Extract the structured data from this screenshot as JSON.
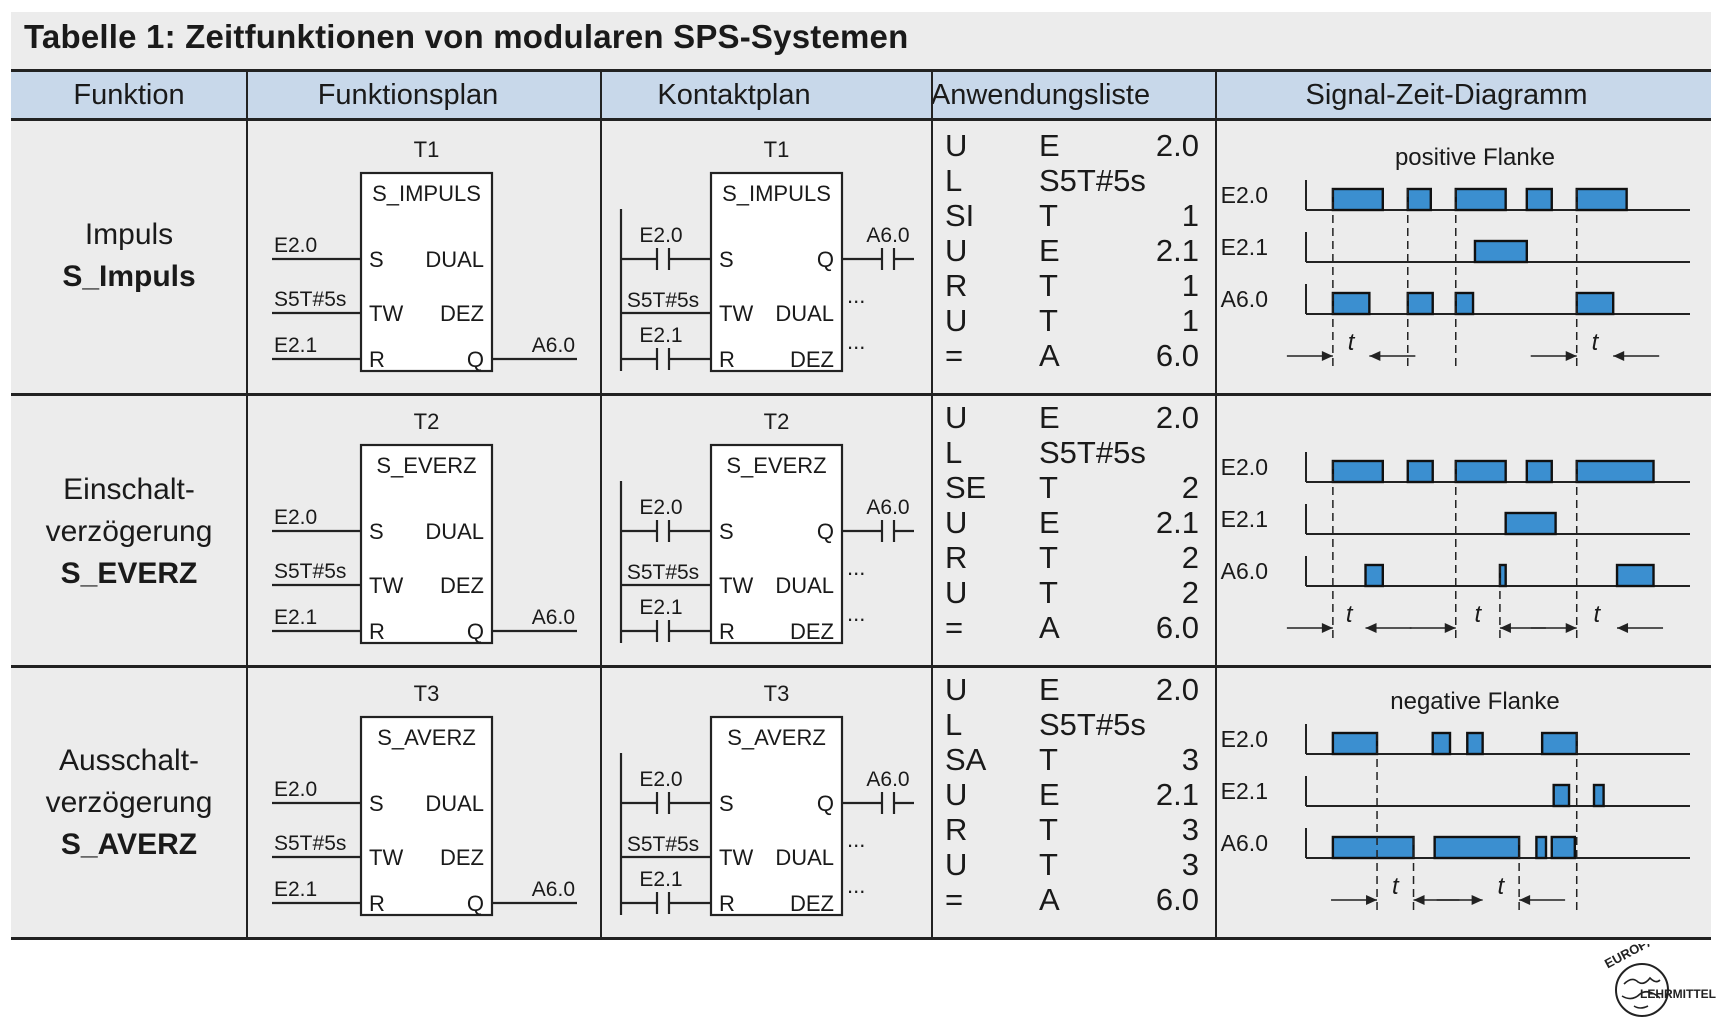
{
  "title": "Tabelle 1:  Zeitfunktionen von modularen SPS-Systemen",
  "headers": [
    "Funktion",
    "Funktionsplan",
    "Kontaktplan",
    "Anwendungsliste",
    "Signal-Zeit-Diagramm"
  ],
  "rows": [
    {
      "name_lines": [
        "Impuls"
      ],
      "name_bold": "S_Impuls",
      "timer": "T1",
      "block": "S_IMPULS",
      "fbd_pins": {
        "s": "S",
        "tw": "TW",
        "r": "R",
        "dual": "DUAL",
        "dez": "DEZ",
        "q": "Q"
      },
      "fbd_signals": {
        "in1": "E2.0",
        "in2": "S5T#5s",
        "in3": "E2.1",
        "out": "A6.0"
      },
      "lad": {
        "in1": "E2.0",
        "in2": "S5T#5s",
        "in3": "E2.1",
        "out": "A6.0",
        "dots": "..."
      },
      "awl": [
        [
          "U",
          "E",
          "2.0"
        ],
        [
          "L",
          "S5T#5s",
          ""
        ],
        [
          "SI",
          "T",
          "1"
        ],
        [
          "U",
          "E",
          "2.1"
        ],
        [
          "R",
          "T",
          "1"
        ],
        [
          "U",
          "T",
          "1"
        ],
        [
          "=",
          "A",
          "6.0"
        ]
      ],
      "diagram": {
        "annotation": "positive Flanke",
        "signals": [
          {
            "label": "E2.0",
            "pulses": [
              [
                0.07,
                0.2
              ],
              [
                0.265,
                0.325
              ],
              [
                0.39,
                0.52
              ],
              [
                0.575,
                0.64
              ],
              [
                0.705,
                0.835
              ]
            ]
          },
          {
            "label": "E2.1",
            "pulses": [
              [
                0.44,
                0.575
              ]
            ]
          },
          {
            "label": "A6.0",
            "pulses": [
              [
                0.07,
                0.165
              ],
              [
                0.265,
                0.33
              ],
              [
                0.39,
                0.435
              ],
              [
                0.705,
                0.8
              ]
            ]
          }
        ],
        "t_label": "t"
      }
    },
    {
      "name_lines": [
        "Einschalt-",
        "verzögerung"
      ],
      "name_bold": "S_EVERZ",
      "timer": "T2",
      "block": "S_EVERZ",
      "fbd_pins": {
        "s": "S",
        "tw": "TW",
        "r": "R",
        "dual": "DUAL",
        "dez": "DEZ",
        "q": "Q"
      },
      "fbd_signals": {
        "in1": "E2.0",
        "in2": "S5T#5s",
        "in3": "E2.1",
        "out": "A6.0"
      },
      "lad": {
        "in1": "E2.0",
        "in2": "S5T#5s",
        "in3": "E2.1",
        "out": "A6.0",
        "dots": "..."
      },
      "awl": [
        [
          "U",
          "E",
          "2.0"
        ],
        [
          "L",
          "S5T#5s",
          ""
        ],
        [
          "SE",
          "T",
          "2"
        ],
        [
          "U",
          "E",
          "2.1"
        ],
        [
          "R",
          "T",
          "2"
        ],
        [
          "U",
          "T",
          "2"
        ],
        [
          "=",
          "A",
          "6.0"
        ]
      ],
      "diagram": {
        "annotation": "",
        "signals": [
          {
            "label": "E2.0",
            "pulses": [
              [
                0.07,
                0.2
              ],
              [
                0.265,
                0.33
              ],
              [
                0.39,
                0.52
              ],
              [
                0.575,
                0.64
              ],
              [
                0.705,
                0.905
              ]
            ]
          },
          {
            "label": "E2.1",
            "pulses": [
              [
                0.52,
                0.65
              ]
            ]
          },
          {
            "label": "A6.0",
            "pulses": [
              [
                0.155,
                0.2
              ],
              [
                0.505,
                0.52
              ],
              [
                0.81,
                0.905
              ]
            ]
          }
        ],
        "t_label": "t"
      }
    },
    {
      "name_lines": [
        "Ausschalt-",
        "verzögerung"
      ],
      "name_bold": "S_AVERZ",
      "timer": "T3",
      "block": "S_AVERZ",
      "fbd_pins": {
        "s": "S",
        "tw": "TW",
        "r": "R",
        "dual": "DUAL",
        "dez": "DEZ",
        "q": "Q"
      },
      "fbd_signals": {
        "in1": "E2.0",
        "in2": "S5T#5s",
        "in3": "E2.1",
        "out": "A6.0"
      },
      "lad": {
        "in1": "E2.0",
        "in2": "S5T#5s",
        "in3": "E2.1",
        "out": "A6.0",
        "dots": "..."
      },
      "awl": [
        [
          "U",
          "E",
          "2.0"
        ],
        [
          "L",
          "S5T#5s",
          ""
        ],
        [
          "SA",
          "T",
          "3"
        ],
        [
          "U",
          "E",
          "2.1"
        ],
        [
          "R",
          "T",
          "3"
        ],
        [
          "U",
          "T",
          "3"
        ],
        [
          "=",
          "A",
          "6.0"
        ]
      ],
      "diagram": {
        "annotation": "negative Flanke",
        "signals": [
          {
            "label": "E2.0",
            "pulses": [
              [
                0.07,
                0.185
              ],
              [
                0.33,
                0.375
              ],
              [
                0.42,
                0.46
              ],
              [
                0.615,
                0.705
              ]
            ]
          },
          {
            "label": "E2.1",
            "pulses": [
              [
                0.645,
                0.685
              ],
              [
                0.75,
                0.775
              ]
            ]
          },
          {
            "label": "A6.0",
            "pulses": [
              [
                0.07,
                0.28
              ],
              [
                0.335,
                0.555
              ],
              [
                0.6,
                0.625
              ],
              [
                0.64,
                0.7
              ]
            ]
          }
        ],
        "t_label": "t"
      }
    }
  ],
  "logo": {
    "line1": "EUROPA",
    "line2": "LEHRMITTEL"
  }
}
